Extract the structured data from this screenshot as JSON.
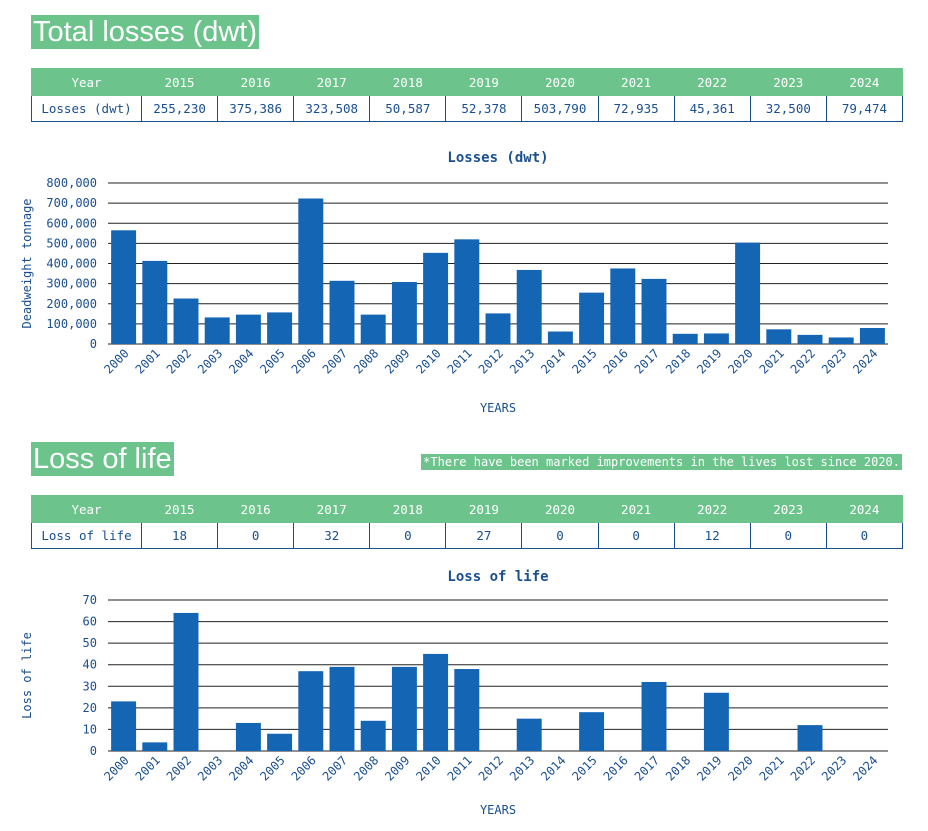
{
  "losses_section": {
    "title": "Total losses (dwt)",
    "table": {
      "header_label": "Year",
      "row_label": "Losses (dwt)",
      "years": [
        "2015",
        "2016",
        "2017",
        "2018",
        "2019",
        "2020",
        "2021",
        "2022",
        "2023",
        "2024"
      ],
      "values": [
        "255,230",
        "375,386",
        "323,508",
        "50,587",
        "52,378",
        "503,790",
        "72,935",
        "45,361",
        "32,500",
        "79,474"
      ]
    }
  },
  "life_section": {
    "title": "Loss of life",
    "note": "*There have been marked improvements in the lives lost since 2020.",
    "table": {
      "header_label": "Year",
      "row_label": "Loss of life",
      "years": [
        "2015",
        "2016",
        "2017",
        "2018",
        "2019",
        "2020",
        "2021",
        "2022",
        "2023",
        "2024"
      ],
      "values": [
        "18",
        "0",
        "32",
        "0",
        "27",
        "0",
        "0",
        "12",
        "0",
        "0"
      ]
    }
  },
  "colors": {
    "bar": "#1565b5",
    "accent_green": "#6cc48c",
    "text": "#1a4f8f",
    "grid": "#222222"
  },
  "chart_data": [
    {
      "type": "bar",
      "title": "Losses (dwt)",
      "xlabel": "YEARS",
      "ylabel": "Deadweight tonnage",
      "ylim": [
        0,
        800000
      ],
      "yticks": [
        "0",
        "100,000",
        "200,000",
        "300,000",
        "400,000",
        "500,000",
        "600,000",
        "700,000",
        "800,000"
      ],
      "categories": [
        "2000",
        "2001",
        "2002",
        "2003",
        "2004",
        "2005",
        "2006",
        "2007",
        "2008",
        "2009",
        "2010",
        "2011",
        "2012",
        "2013",
        "2014",
        "2015",
        "2016",
        "2017",
        "2018",
        "2019",
        "2020",
        "2021",
        "2022",
        "2023",
        "2024"
      ],
      "values": [
        565000,
        413000,
        226000,
        132000,
        146000,
        157000,
        723000,
        314000,
        146000,
        308000,
        453000,
        520000,
        152000,
        368000,
        62000,
        255230,
        375386,
        323508,
        50587,
        52378,
        503790,
        72935,
        45361,
        32500,
        79474
      ]
    },
    {
      "type": "bar",
      "title": "Loss of life",
      "xlabel": "YEARS",
      "ylabel": "Loss of life",
      "ylim": [
        0,
        70
      ],
      "yticks": [
        "0",
        "10",
        "20",
        "30",
        "40",
        "50",
        "60",
        "70"
      ],
      "categories": [
        "2000",
        "2001",
        "2002",
        "2003",
        "2004",
        "2005",
        "2006",
        "2007",
        "2008",
        "2009",
        "2010",
        "2011",
        "2012",
        "2013",
        "2014",
        "2015",
        "2016",
        "2017",
        "2018",
        "2019",
        "2020",
        "2021",
        "2022",
        "2023",
        "2024"
      ],
      "values": [
        23,
        4,
        64,
        0,
        13,
        8,
        37,
        39,
        14,
        39,
        45,
        38,
        0,
        15,
        0,
        18,
        0,
        32,
        0,
        27,
        0,
        0,
        12,
        0,
        0
      ]
    }
  ]
}
